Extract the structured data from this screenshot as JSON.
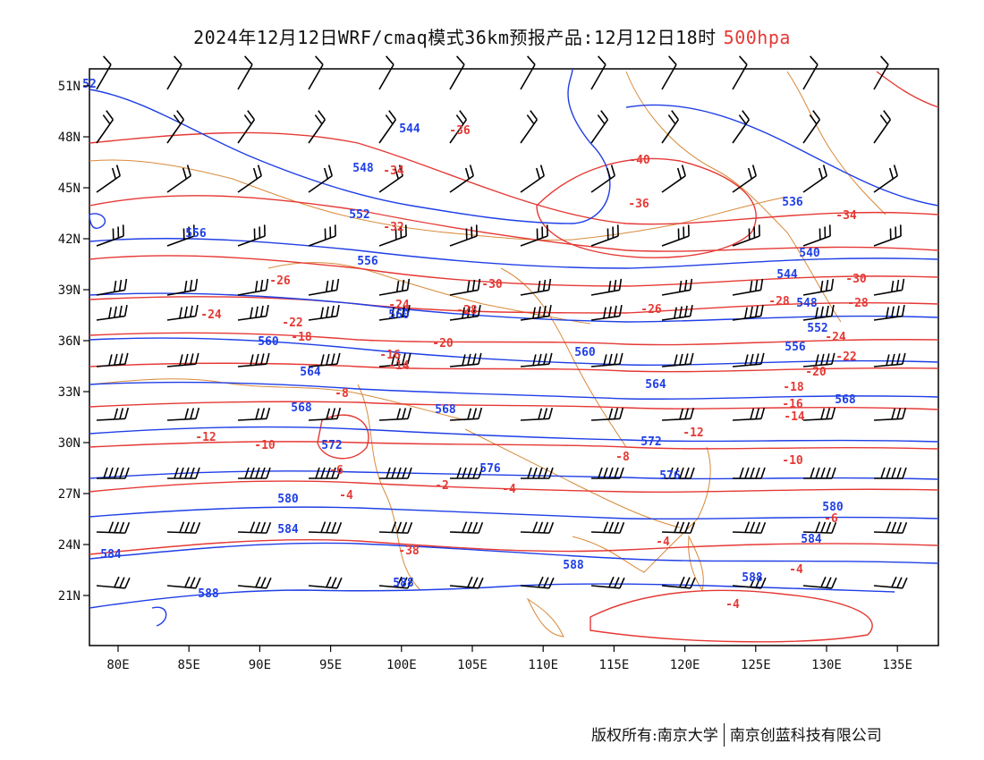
{
  "title": {
    "text": "2024年12月12日WRF/cmaq模式36km预报产品:12月12日18时",
    "level": "500hpa"
  },
  "footer": {
    "left": "版权所有:南京大学",
    "right": "南京创蓝科技有限公司"
  },
  "colors": {
    "height_contour": "#1f3fe6",
    "temperature_contour": "#e53935",
    "border": "#d88a3a",
    "barb": "#000000"
  },
  "axes": {
    "lon_ticks": [
      "80E",
      "85E",
      "90E",
      "95E",
      "100E",
      "105E",
      "110E",
      "115E",
      "120E",
      "125E",
      "130E",
      "135E"
    ],
    "lat_ticks": [
      "51N",
      "48N",
      "45N",
      "42N",
      "39N",
      "36N",
      "33N",
      "30N",
      "27N",
      "24N",
      "21N"
    ]
  },
  "height_labels": [
    "52",
    "544",
    "548",
    "552",
    "556",
    "556",
    "560",
    "560",
    "564",
    "568",
    "568",
    "572",
    "576",
    "580",
    "584",
    "584",
    "588",
    "588",
    "588",
    "536",
    "540",
    "544",
    "548",
    "552",
    "556",
    "560",
    "564",
    "568",
    "572",
    "576",
    "580",
    "584",
    "588"
  ],
  "temp_labels": [
    "-36",
    "-34",
    "-32",
    "-30",
    "-28",
    "-28",
    "-26",
    "-24",
    "-24",
    "-22",
    "-20",
    "-18",
    "-16",
    "-14",
    "-12",
    "-10",
    "-8",
    "-6",
    "-4",
    "-2",
    "-38",
    "-40",
    "-36",
    "-34",
    "-30",
    "-28",
    "-26",
    "-24",
    "-22",
    "-20",
    "-18",
    "-16",
    "-14",
    "-12",
    "-10",
    "-8",
    "-6",
    "-4",
    "-4",
    "-4",
    "-4"
  ]
}
